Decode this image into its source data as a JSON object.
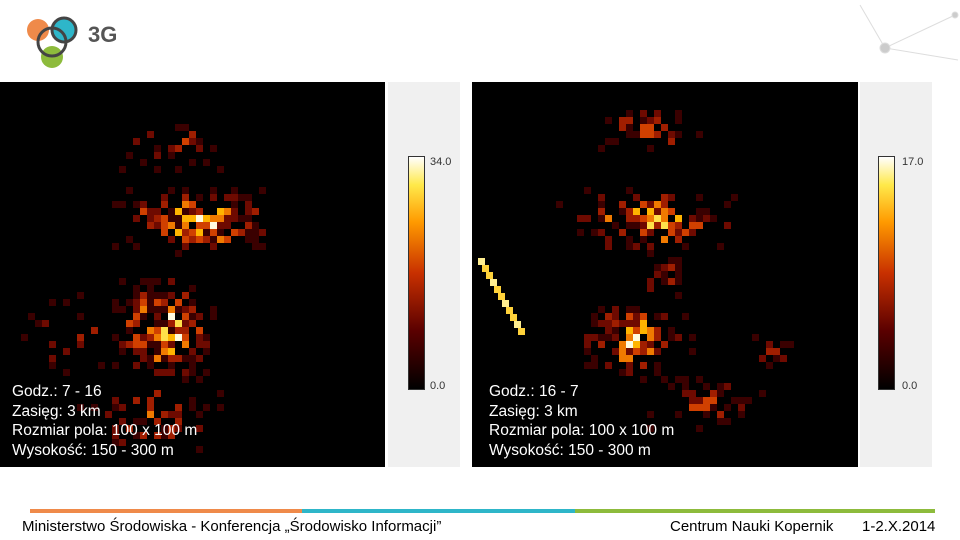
{
  "header": {
    "logo_text": "3G"
  },
  "panels": [
    {
      "caption": [
        "Godz.: 7 - 16",
        "Zasięg: 3 km",
        "Rozmiar pola: 100 x 100 m",
        "Wysokość: 150 - 300 m"
      ],
      "colorbar": {
        "max": "34.0",
        "min": "0.0"
      }
    },
    {
      "caption": [
        "Godz.: 16 - 7",
        "Zasięg: 3 km",
        "Rozmiar pola: 100 x 100 m",
        "Wysokość: 150 - 300 m"
      ],
      "colorbar": {
        "max": "17.0",
        "min": "0.0"
      }
    }
  ],
  "footer": {
    "left": "Ministerstwo Środowiska - Konferencja „Środowisko Informacji”",
    "right": [
      "Centrum Nauki Kopernik",
      "1-2.X.2014"
    ]
  }
}
